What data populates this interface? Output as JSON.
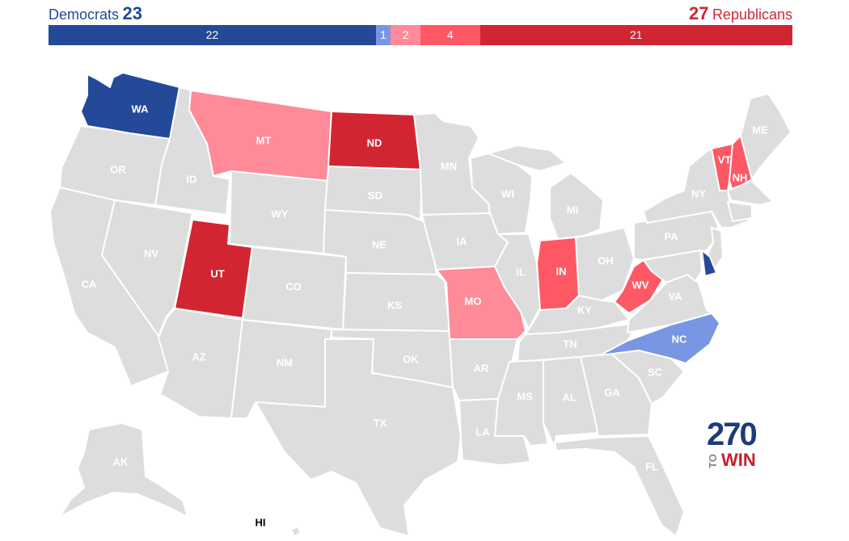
{
  "header": {
    "dem_label": "Democrats",
    "dem_count": "23",
    "rep_count": "27",
    "rep_label": "Republicans"
  },
  "bar_segments": [
    {
      "label": "22",
      "value": 22,
      "color": "#244999"
    },
    {
      "label": "1",
      "value": 1,
      "color": "#7996e2"
    },
    {
      "label": "2",
      "value": 2,
      "color": "#ff8b98"
    },
    {
      "label": "4",
      "value": 4,
      "color": "#ff5865"
    },
    {
      "label": "21",
      "value": 21,
      "color": "#d22532"
    }
  ],
  "colors": {
    "safe_dem": "#244999",
    "lean_dem": "#7996e2",
    "tilt_rep": "#ff8b98",
    "lean_rep": "#ff5865",
    "safe_rep": "#d22532",
    "no_race": "#dddddd"
  },
  "states": {
    "WA": "WA",
    "OR": "OR",
    "CA": "CA",
    "ID": "ID",
    "NV": "NV",
    "MT": "MT",
    "WY": "WY",
    "UT": "UT",
    "AZ": "AZ",
    "CO": "CO",
    "NM": "NM",
    "ND": "ND",
    "SD": "SD",
    "NE": "NE",
    "KS": "KS",
    "OK": "OK",
    "TX": "TX",
    "MN": "MN",
    "IA": "IA",
    "MO": "MO",
    "AR": "AR",
    "LA": "LA",
    "WI": "WI",
    "IL": "IL",
    "MI": "MI",
    "IN": "IN",
    "OH": "OH",
    "KY": "KY",
    "TN": "TN",
    "MS": "MS",
    "AL": "AL",
    "GA": "GA",
    "FL": "FL",
    "SC": "SC",
    "NC": "NC",
    "VA": "VA",
    "WV": "WV",
    "PA": "PA",
    "NY": "NY",
    "VT": "VT",
    "NH": "NH",
    "ME": "ME",
    "AK": "AK",
    "HI": "HI"
  },
  "logo": {
    "top": "270",
    "to": "TO",
    "win": "WIN"
  }
}
